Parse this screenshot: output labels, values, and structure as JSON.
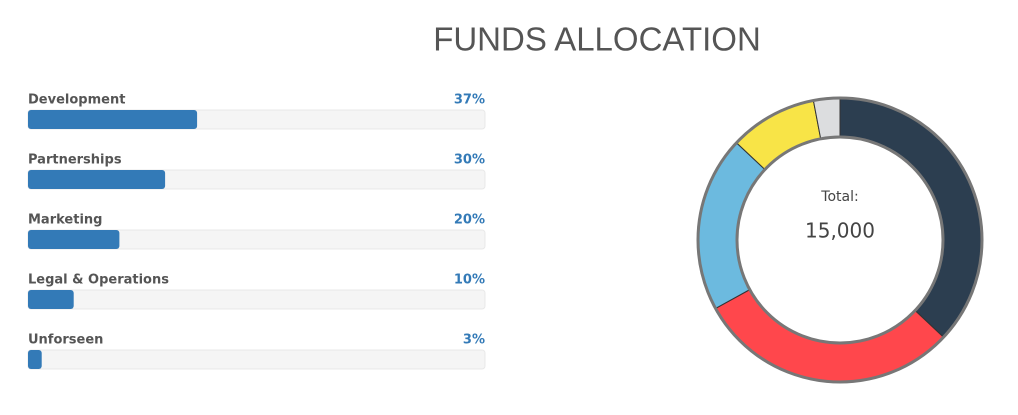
{
  "title": "FUNDS ALLOCATION",
  "chart_data": [
    {
      "type": "progress",
      "categories": [
        "Development",
        "Partnerships",
        "Marketing",
        "Legal & Operations",
        "Unforseen"
      ],
      "values": [
        37,
        30,
        20,
        10,
        3
      ],
      "value_labels": [
        "37%",
        "30%",
        "20%",
        "10%",
        "3%"
      ],
      "color": "#337ab7",
      "xlim": [
        0,
        100
      ]
    },
    {
      "type": "donut",
      "categories": [
        "Development",
        "Partnerships",
        "Marketing",
        "Legal & Operations",
        "Unforseen"
      ],
      "values": [
        37,
        30,
        20,
        10,
        3
      ],
      "colors": [
        "#2c3e50",
        "#ff474c",
        "#6cbadf",
        "#f8e447",
        "#dcdddf"
      ],
      "total_title": "Total:",
      "total": "15,000"
    }
  ]
}
